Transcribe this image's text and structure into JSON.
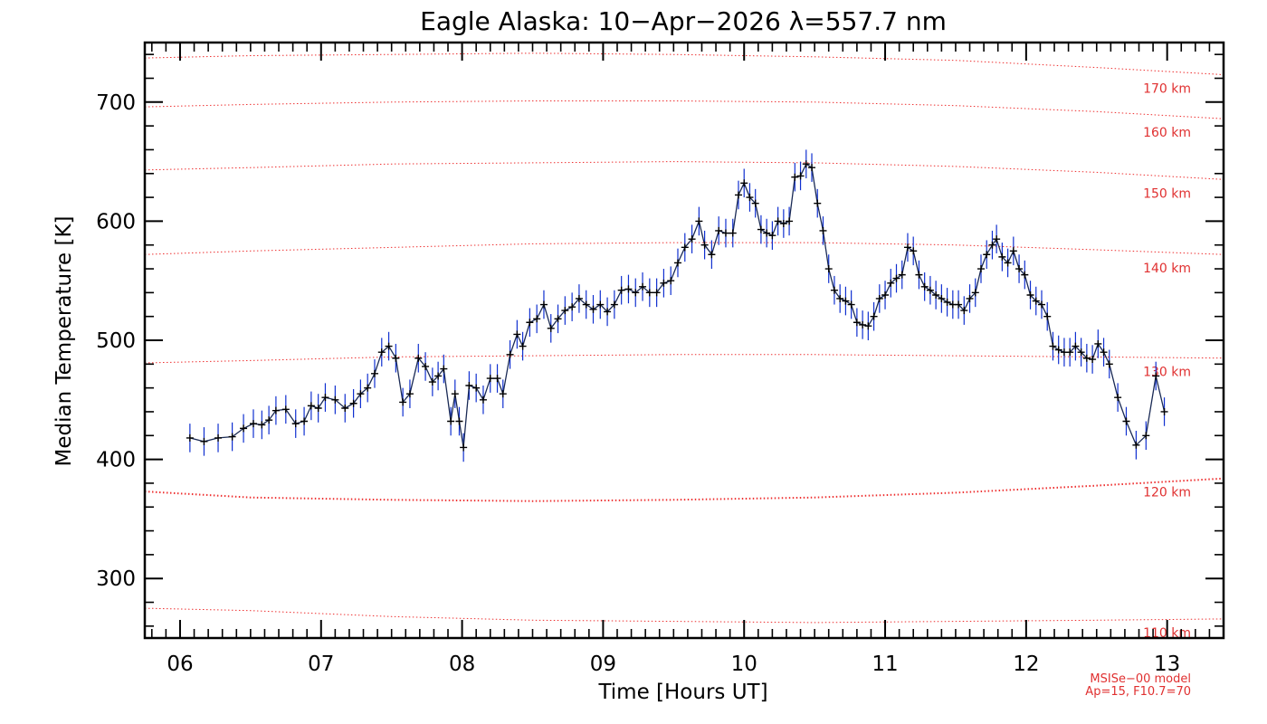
{
  "chart_data": {
    "type": "line",
    "title": "Eagle Alaska: 10−Apr−2026 λ=557.7 nm",
    "xlabel": "Time [Hours UT]",
    "ylabel": "Median Temperature [K]",
    "xlim": [
      5.75,
      13.4
    ],
    "ylim": [
      250,
      750
    ],
    "x_ticks": [
      6,
      7,
      8,
      9,
      10,
      11,
      12,
      13
    ],
    "x_tick_labels": [
      "06",
      "07",
      "08",
      "09",
      "10",
      "11",
      "12",
      "13"
    ],
    "y_ticks": [
      300,
      400,
      500,
      600,
      700
    ],
    "y_tick_labels": [
      "300",
      "400",
      "500",
      "600",
      "700"
    ],
    "grid": false,
    "series": [
      {
        "color": "#000000",
        "error_color": "#1030d0",
        "error": 12,
        "points": [
          [
            6.07,
            418
          ],
          [
            6.17,
            415
          ],
          [
            6.27,
            418
          ],
          [
            6.37,
            419
          ],
          [
            6.45,
            426
          ],
          [
            6.52,
            430
          ],
          [
            6.58,
            429
          ],
          [
            6.63,
            433
          ],
          [
            6.68,
            441
          ],
          [
            6.75,
            442
          ],
          [
            6.82,
            430
          ],
          [
            6.88,
            432
          ],
          [
            6.93,
            445
          ],
          [
            6.98,
            443
          ],
          [
            7.03,
            452
          ],
          [
            7.1,
            450
          ],
          [
            7.17,
            443
          ],
          [
            7.23,
            447
          ],
          [
            7.28,
            455
          ],
          [
            7.33,
            460
          ],
          [
            7.38,
            472
          ],
          [
            7.43,
            490
          ],
          [
            7.48,
            495
          ],
          [
            7.53,
            485
          ],
          [
            7.58,
            448
          ],
          [
            7.63,
            455
          ],
          [
            7.69,
            485
          ],
          [
            7.74,
            478
          ],
          [
            7.79,
            465
          ],
          [
            7.83,
            470
          ],
          [
            7.87,
            476
          ],
          [
            7.92,
            432
          ],
          [
            7.95,
            455
          ],
          [
            7.98,
            432
          ],
          [
            8.01,
            410
          ],
          [
            8.05,
            462
          ],
          [
            8.1,
            460
          ],
          [
            8.15,
            450
          ],
          [
            8.2,
            468
          ],
          [
            8.25,
            468
          ],
          [
            8.29,
            455
          ],
          [
            8.34,
            488
          ],
          [
            8.39,
            505
          ],
          [
            8.43,
            495
          ],
          [
            8.48,
            515
          ],
          [
            8.53,
            518
          ],
          [
            8.58,
            530
          ],
          [
            8.63,
            510
          ],
          [
            8.68,
            518
          ],
          [
            8.73,
            525
          ],
          [
            8.78,
            528
          ],
          [
            8.83,
            535
          ],
          [
            8.88,
            530
          ],
          [
            8.93,
            526
          ],
          [
            8.98,
            530
          ],
          [
            9.03,
            524
          ],
          [
            9.08,
            530
          ],
          [
            9.13,
            542
          ],
          [
            9.18,
            543
          ],
          [
            9.23,
            540
          ],
          [
            9.28,
            545
          ],
          [
            9.33,
            540
          ],
          [
            9.38,
            540
          ],
          [
            9.43,
            548
          ],
          [
            9.48,
            550
          ],
          [
            9.53,
            565
          ],
          [
            9.58,
            578
          ],
          [
            9.63,
            585
          ],
          [
            9.68,
            600
          ],
          [
            9.72,
            580
          ],
          [
            9.77,
            572
          ],
          [
            9.82,
            592
          ],
          [
            9.87,
            590
          ],
          [
            9.92,
            590
          ],
          [
            9.96,
            622
          ],
          [
            10.0,
            632
          ],
          [
            10.04,
            620
          ],
          [
            10.08,
            615
          ],
          [
            10.12,
            593
          ],
          [
            10.16,
            590
          ],
          [
            10.2,
            588
          ],
          [
            10.24,
            600
          ],
          [
            10.28,
            598
          ],
          [
            10.32,
            600
          ],
          [
            10.36,
            637
          ],
          [
            10.4,
            638
          ],
          [
            10.44,
            648
          ],
          [
            10.48,
            645
          ],
          [
            10.52,
            615
          ],
          [
            10.56,
            592
          ],
          [
            10.6,
            560
          ],
          [
            10.64,
            542
          ],
          [
            10.68,
            535
          ],
          [
            10.72,
            533
          ],
          [
            10.76,
            530
          ],
          [
            10.8,
            515
          ],
          [
            10.84,
            513
          ],
          [
            10.88,
            512
          ],
          [
            10.92,
            520
          ],
          [
            10.96,
            535
          ],
          [
            11.0,
            538
          ],
          [
            11.04,
            548
          ],
          [
            11.08,
            552
          ],
          [
            11.12,
            555
          ],
          [
            11.16,
            578
          ],
          [
            11.2,
            575
          ],
          [
            11.24,
            555
          ],
          [
            11.28,
            545
          ],
          [
            11.32,
            542
          ],
          [
            11.36,
            538
          ],
          [
            11.4,
            535
          ],
          [
            11.44,
            532
          ],
          [
            11.48,
            530
          ],
          [
            11.52,
            530
          ],
          [
            11.56,
            525
          ],
          [
            11.6,
            535
          ],
          [
            11.64,
            540
          ],
          [
            11.68,
            560
          ],
          [
            11.72,
            572
          ],
          [
            11.76,
            580
          ],
          [
            11.79,
            585
          ],
          [
            11.83,
            570
          ],
          [
            11.87,
            565
          ],
          [
            11.91,
            575
          ],
          [
            11.95,
            560
          ],
          [
            11.99,
            555
          ],
          [
            12.03,
            538
          ],
          [
            12.07,
            533
          ],
          [
            12.11,
            530
          ],
          [
            12.15,
            520
          ],
          [
            12.19,
            495
          ],
          [
            12.23,
            492
          ],
          [
            12.27,
            490
          ],
          [
            12.31,
            490
          ],
          [
            12.35,
            495
          ],
          [
            12.39,
            490
          ],
          [
            12.43,
            485
          ],
          [
            12.47,
            484
          ],
          [
            12.51,
            497
          ],
          [
            12.55,
            490
          ],
          [
            12.59,
            480
          ],
          [
            12.65,
            452
          ],
          [
            12.71,
            432
          ],
          [
            12.78,
            412
          ],
          [
            12.85,
            420
          ],
          [
            12.92,
            470
          ],
          [
            12.98,
            440
          ]
        ]
      }
    ],
    "model_levels": [
      {
        "label": "110 km",
        "line_color": "#ee3030",
        "values": [
          [
            5.75,
            275
          ],
          [
            6.5,
            273
          ],
          [
            7.5,
            268
          ],
          [
            8.5,
            265
          ],
          [
            9.5,
            264
          ],
          [
            10.5,
            263
          ],
          [
            11.5,
            264
          ],
          [
            12.5,
            265
          ],
          [
            13.4,
            266
          ]
        ]
      },
      {
        "label": "120 km",
        "line_color": "#ee3030",
        "values": [
          [
            5.75,
            373
          ],
          [
            6.5,
            368
          ],
          [
            7.5,
            366
          ],
          [
            8.5,
            365
          ],
          [
            9.5,
            366
          ],
          [
            10.5,
            368
          ],
          [
            11.5,
            372
          ],
          [
            12.5,
            378
          ],
          [
            13.4,
            384
          ]
        ]
      },
      {
        "label": "130 km",
        "line_color": "#ee3030",
        "values": [
          [
            5.75,
            481
          ],
          [
            6.5,
            483
          ],
          [
            7.5,
            486
          ],
          [
            8.5,
            487
          ],
          [
            9.5,
            488
          ],
          [
            10.5,
            488
          ],
          [
            11.5,
            487
          ],
          [
            12.5,
            486
          ],
          [
            13.4,
            485
          ]
        ]
      },
      {
        "label": "140 km",
        "line_color": "#ee3030",
        "values": [
          [
            5.75,
            572
          ],
          [
            6.5,
            575
          ],
          [
            7.5,
            578
          ],
          [
            8.5,
            581
          ],
          [
            9.5,
            582
          ],
          [
            10.5,
            582
          ],
          [
            11.5,
            580
          ],
          [
            12.5,
            576
          ],
          [
            13.4,
            572
          ]
        ]
      },
      {
        "label": "150 km",
        "line_color": "#ee3030",
        "values": [
          [
            5.75,
            643
          ],
          [
            6.5,
            645
          ],
          [
            7.5,
            648
          ],
          [
            8.5,
            649
          ],
          [
            9.5,
            650
          ],
          [
            10.5,
            649
          ],
          [
            11.5,
            646
          ],
          [
            12.5,
            641
          ],
          [
            13.4,
            635
          ]
        ]
      },
      {
        "label": "160 km",
        "line_color": "#ee3030",
        "values": [
          [
            5.75,
            696
          ],
          [
            6.5,
            698
          ],
          [
            7.5,
            700
          ],
          [
            8.5,
            701
          ],
          [
            9.5,
            701
          ],
          [
            10.5,
            700
          ],
          [
            11.5,
            697
          ],
          [
            12.5,
            692
          ],
          [
            13.4,
            686
          ]
        ]
      },
      {
        "label": "170 km",
        "line_color": "#ee3030",
        "values": [
          [
            5.75,
            737
          ],
          [
            6.5,
            739
          ],
          [
            7.5,
            740
          ],
          [
            8.5,
            741
          ],
          [
            9.5,
            740
          ],
          [
            10.5,
            738
          ],
          [
            11.5,
            735
          ],
          [
            12.5,
            729
          ],
          [
            13.4,
            723
          ]
        ]
      }
    ],
    "model_note": [
      "MSISe−00 model",
      "Ap=15, F10.7=70"
    ]
  }
}
